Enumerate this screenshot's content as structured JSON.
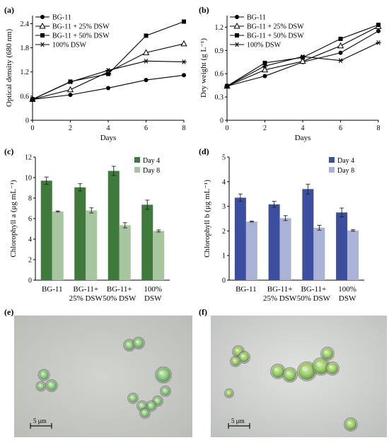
{
  "panel_labels": {
    "a": "(a)",
    "b": "(b)",
    "c": "(c)",
    "d": "(d)",
    "e": "(e)",
    "f": "(f)"
  },
  "colors": {
    "dark_green": "#3f7a3c",
    "light_green": "#a7c6a0",
    "dark_blue": "#3c4f9e",
    "light_blue": "#aab3d6",
    "micrograph_bg_e": "#c9cdc6",
    "micrograph_bg_f": "#cdd1ce",
    "cell": "#7cc07a"
  },
  "chart_data": [
    {
      "id": "a",
      "type": "line",
      "xlabel": "Days",
      "ylabel": "Optical density (680 nm)",
      "xlim": [
        0,
        8
      ],
      "ylim": [
        0,
        2.6
      ],
      "xticks": [
        "0",
        "2",
        "4",
        "6",
        "8"
      ],
      "yticks": [
        "0",
        "0.6",
        "1.2",
        "1.8",
        "2.4"
      ],
      "x": [
        0,
        2,
        4,
        6,
        8
      ],
      "legend_position": "top-left",
      "series": [
        {
          "name": "BG-11",
          "marker": "circle",
          "values": [
            0.52,
            0.63,
            0.8,
            1.0,
            1.12
          ]
        },
        {
          "name": "BG-11 + 25% DSW",
          "marker": "triangle",
          "values": [
            0.52,
            0.76,
            1.2,
            1.68,
            1.9
          ]
        },
        {
          "name": "BG-11 + 50% DSW",
          "marker": "square",
          "values": [
            0.52,
            0.96,
            1.15,
            2.1,
            2.45
          ]
        },
        {
          "name": "100% DSW",
          "marker": "star",
          "values": [
            0.52,
            0.95,
            1.24,
            1.47,
            1.45
          ]
        }
      ]
    },
    {
      "id": "b",
      "type": "line",
      "xlabel": "Days",
      "ylabel": "Dry weight (g L⁻¹)",
      "xlim": [
        0,
        8
      ],
      "ylim": [
        0,
        1.35
      ],
      "xticks": [
        "0",
        "2",
        "4",
        "6",
        "8"
      ],
      "yticks": [
        "0",
        "0.3",
        "0.6",
        "0.9",
        "1.2"
      ],
      "x": [
        0,
        2,
        4,
        6,
        8
      ],
      "legend_position": "top-left",
      "series": [
        {
          "name": "BG-11",
          "marker": "circle",
          "values": [
            0.44,
            0.57,
            0.75,
            0.87,
            1.15
          ]
        },
        {
          "name": "BG-11 + 25% DSW",
          "marker": "triangle",
          "values": [
            0.44,
            0.65,
            0.76,
            0.96,
            1.21
          ]
        },
        {
          "name": "BG-11 + 50% DSW",
          "marker": "square",
          "values": [
            0.44,
            0.74,
            0.81,
            1.05,
            1.23
          ]
        },
        {
          "name": "100% DSW",
          "marker": "star",
          "values": [
            0.44,
            0.7,
            0.82,
            0.77,
            1.0
          ]
        }
      ]
    },
    {
      "id": "c",
      "type": "bar",
      "xlabel": "",
      "ylabel": "Chlorophyll a (μg mL⁻¹)",
      "ylim": [
        0,
        12
      ],
      "yticks": [
        "0",
        "2",
        "4",
        "6",
        "8",
        "10",
        "12"
      ],
      "categories": [
        [
          "BG-11"
        ],
        [
          "BG-11+",
          "25% DSW"
        ],
        [
          "BG-11+",
          "50% DSW"
        ],
        [
          "100%",
          "DSW"
        ]
      ],
      "legend_position": "top-right",
      "series": [
        {
          "name": "Day 4",
          "color": "#3f7a3c",
          "values": [
            9.7,
            9.05,
            10.65,
            7.35
          ],
          "errors": [
            0.35,
            0.35,
            0.45,
            0.45
          ]
        },
        {
          "name": "Day 8",
          "color": "#a7c6a0",
          "values": [
            6.7,
            6.8,
            5.35,
            4.8
          ],
          "errors": [
            0.05,
            0.25,
            0.25,
            0.1
          ]
        }
      ]
    },
    {
      "id": "d",
      "type": "bar",
      "xlabel": "",
      "ylabel": "Chlorophyll b (μg mL⁻¹)",
      "ylim": [
        0,
        5
      ],
      "yticks": [
        "0",
        "1",
        "2",
        "3",
        "4",
        "5"
      ],
      "categories": [
        [
          "BG-11"
        ],
        [
          "BG-11+",
          "25% DSW"
        ],
        [
          "BG-11+",
          "50% DSW"
        ],
        [
          "100%",
          "DSW"
        ]
      ],
      "legend_position": "top-right",
      "series": [
        {
          "name": "Day 4",
          "color": "#3c4f9e",
          "values": [
            3.35,
            3.08,
            3.7,
            2.75
          ],
          "errors": [
            0.15,
            0.12,
            0.2,
            0.18
          ]
        },
        {
          "name": "Day 8",
          "color": "#aab3d6",
          "values": [
            2.38,
            2.52,
            2.13,
            2.02
          ],
          "errors": [
            0.02,
            0.1,
            0.1,
            0.03
          ]
        }
      ]
    }
  ],
  "micrographs": [
    {
      "id": "e",
      "scale_label": "5 μm"
    },
    {
      "id": "f",
      "scale_label": "5 μm"
    }
  ]
}
